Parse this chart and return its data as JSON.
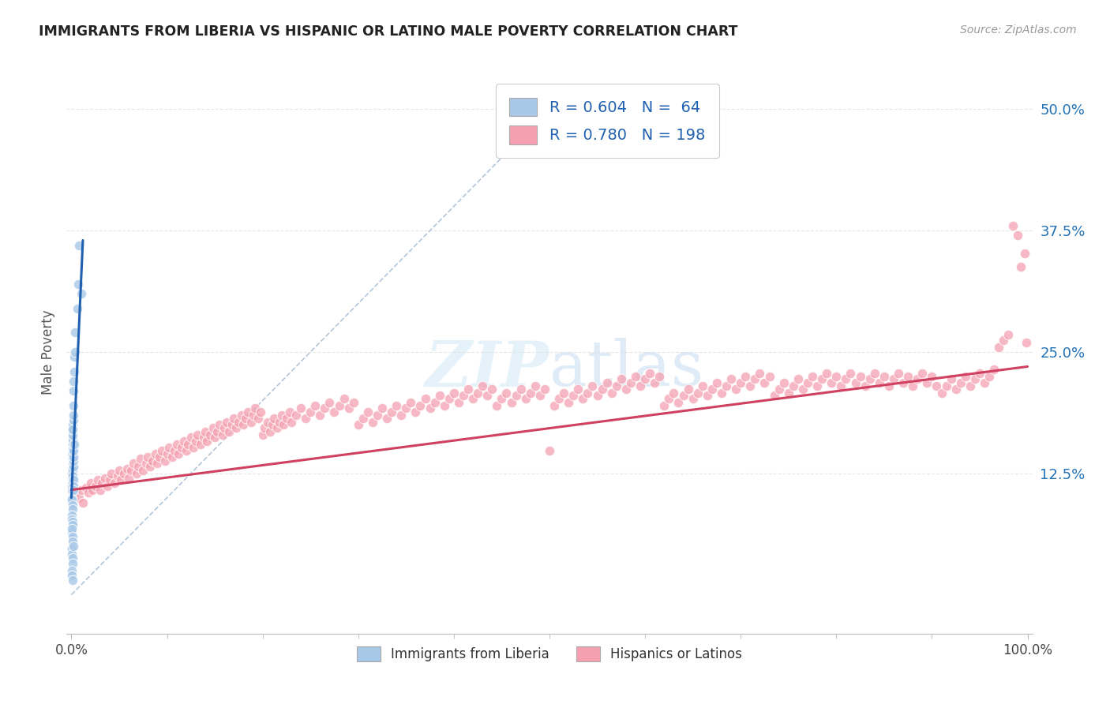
{
  "title": "IMMIGRANTS FROM LIBERIA VS HISPANIC OR LATINO MALE POVERTY CORRELATION CHART",
  "source": "Source: ZipAtlas.com",
  "ylabel": "Male Poverty",
  "ytick_labels": [
    "12.5%",
    "25.0%",
    "37.5%",
    "50.0%"
  ],
  "ytick_values": [
    0.125,
    0.25,
    0.375,
    0.5
  ],
  "xlim": [
    -0.005,
    1.005
  ],
  "ylim": [
    -0.04,
    0.54
  ],
  "blue_color": "#a8c8e8",
  "pink_color": "#f4a0b0",
  "blue_line_color": "#2060b0",
  "pink_line_color": "#d04060",
  "dash_color": "#a0b8d0",
  "watermark_color": "#cce0f0",
  "background_color": "#ffffff",
  "grid_color": "#e0e0e0",
  "blue_scatter": [
    [
      0.0005,
      0.1
    ],
    [
      0.0005,
      0.13
    ],
    [
      0.0008,
      0.145
    ],
    [
      0.001,
      0.155
    ],
    [
      0.001,
      0.16
    ],
    [
      0.001,
      0.165
    ],
    [
      0.001,
      0.17
    ],
    [
      0.0012,
      0.145
    ],
    [
      0.0012,
      0.15
    ],
    [
      0.0015,
      0.175
    ],
    [
      0.0015,
      0.17
    ],
    [
      0.0018,
      0.18
    ],
    [
      0.002,
      0.195
    ],
    [
      0.002,
      0.185
    ],
    [
      0.0022,
      0.21
    ],
    [
      0.0025,
      0.22
    ],
    [
      0.003,
      0.245
    ],
    [
      0.003,
      0.23
    ],
    [
      0.0035,
      0.25
    ],
    [
      0.004,
      0.27
    ],
    [
      0.0005,
      0.115
    ],
    [
      0.0005,
      0.125
    ],
    [
      0.0008,
      0.12
    ],
    [
      0.001,
      0.135
    ],
    [
      0.001,
      0.14
    ],
    [
      0.0012,
      0.13
    ],
    [
      0.0015,
      0.128
    ],
    [
      0.0018,
      0.132
    ],
    [
      0.002,
      0.138
    ],
    [
      0.0022,
      0.142
    ],
    [
      0.0025,
      0.148
    ],
    [
      0.003,
      0.155
    ],
    [
      0.0005,
      0.108
    ],
    [
      0.0008,
      0.112
    ],
    [
      0.001,
      0.118
    ],
    [
      0.0012,
      0.122
    ],
    [
      0.0015,
      0.115
    ],
    [
      0.0018,
      0.118
    ],
    [
      0.002,
      0.112
    ],
    [
      0.0022,
      0.108
    ],
    [
      0.0005,
      0.095
    ],
    [
      0.0008,
      0.098
    ],
    [
      0.001,
      0.092
    ],
    [
      0.001,
      0.088
    ],
    [
      0.0005,
      0.082
    ],
    [
      0.0008,
      0.078
    ],
    [
      0.001,
      0.075
    ],
    [
      0.0012,
      0.072
    ],
    [
      0.0005,
      0.065
    ],
    [
      0.0008,
      0.068
    ],
    [
      0.001,
      0.06
    ],
    [
      0.0012,
      0.055
    ],
    [
      0.0005,
      0.048
    ],
    [
      0.0008,
      0.042
    ],
    [
      0.001,
      0.038
    ],
    [
      0.001,
      0.032
    ],
    [
      0.0005,
      0.025
    ],
    [
      0.0008,
      0.02
    ],
    [
      0.001,
      0.015
    ],
    [
      0.006,
      0.295
    ],
    [
      0.007,
      0.32
    ],
    [
      0.008,
      0.36
    ],
    [
      0.01,
      0.31
    ],
    [
      0.002,
      0.05
    ]
  ],
  "pink_scatter": [
    [
      0.005,
      0.105
    ],
    [
      0.008,
      0.1
    ],
    [
      0.01,
      0.108
    ],
    [
      0.012,
      0.095
    ],
    [
      0.015,
      0.11
    ],
    [
      0.018,
      0.105
    ],
    [
      0.02,
      0.115
    ],
    [
      0.022,
      0.108
    ],
    [
      0.025,
      0.112
    ],
    [
      0.028,
      0.118
    ],
    [
      0.03,
      0.108
    ],
    [
      0.032,
      0.115
    ],
    [
      0.035,
      0.12
    ],
    [
      0.038,
      0.112
    ],
    [
      0.04,
      0.118
    ],
    [
      0.042,
      0.125
    ],
    [
      0.045,
      0.115
    ],
    [
      0.048,
      0.122
    ],
    [
      0.05,
      0.128
    ],
    [
      0.052,
      0.118
    ],
    [
      0.055,
      0.125
    ],
    [
      0.058,
      0.13
    ],
    [
      0.06,
      0.12
    ],
    [
      0.062,
      0.128
    ],
    [
      0.065,
      0.135
    ],
    [
      0.068,
      0.125
    ],
    [
      0.07,
      0.132
    ],
    [
      0.072,
      0.14
    ],
    [
      0.075,
      0.128
    ],
    [
      0.078,
      0.135
    ],
    [
      0.08,
      0.142
    ],
    [
      0.082,
      0.132
    ],
    [
      0.085,
      0.138
    ],
    [
      0.088,
      0.145
    ],
    [
      0.09,
      0.135
    ],
    [
      0.092,
      0.142
    ],
    [
      0.095,
      0.148
    ],
    [
      0.098,
      0.138
    ],
    [
      0.1,
      0.145
    ],
    [
      0.102,
      0.152
    ],
    [
      0.105,
      0.142
    ],
    [
      0.108,
      0.148
    ],
    [
      0.11,
      0.155
    ],
    [
      0.112,
      0.145
    ],
    [
      0.115,
      0.152
    ],
    [
      0.118,
      0.158
    ],
    [
      0.12,
      0.148
    ],
    [
      0.122,
      0.155
    ],
    [
      0.125,
      0.162
    ],
    [
      0.128,
      0.152
    ],
    [
      0.13,
      0.158
    ],
    [
      0.132,
      0.165
    ],
    [
      0.135,
      0.155
    ],
    [
      0.138,
      0.162
    ],
    [
      0.14,
      0.168
    ],
    [
      0.142,
      0.158
    ],
    [
      0.145,
      0.165
    ],
    [
      0.148,
      0.172
    ],
    [
      0.15,
      0.162
    ],
    [
      0.152,
      0.168
    ],
    [
      0.155,
      0.175
    ],
    [
      0.158,
      0.165
    ],
    [
      0.16,
      0.172
    ],
    [
      0.162,
      0.178
    ],
    [
      0.165,
      0.168
    ],
    [
      0.168,
      0.175
    ],
    [
      0.17,
      0.182
    ],
    [
      0.172,
      0.172
    ],
    [
      0.175,
      0.178
    ],
    [
      0.178,
      0.185
    ],
    [
      0.18,
      0.175
    ],
    [
      0.182,
      0.182
    ],
    [
      0.185,
      0.188
    ],
    [
      0.188,
      0.178
    ],
    [
      0.19,
      0.185
    ],
    [
      0.192,
      0.192
    ],
    [
      0.195,
      0.182
    ],
    [
      0.198,
      0.188
    ],
    [
      0.2,
      0.165
    ],
    [
      0.202,
      0.172
    ],
    [
      0.205,
      0.178
    ],
    [
      0.208,
      0.168
    ],
    [
      0.21,
      0.175
    ],
    [
      0.212,
      0.182
    ],
    [
      0.215,
      0.172
    ],
    [
      0.218,
      0.178
    ],
    [
      0.22,
      0.185
    ],
    [
      0.222,
      0.175
    ],
    [
      0.225,
      0.182
    ],
    [
      0.228,
      0.188
    ],
    [
      0.23,
      0.178
    ],
    [
      0.235,
      0.185
    ],
    [
      0.24,
      0.192
    ],
    [
      0.245,
      0.182
    ],
    [
      0.25,
      0.188
    ],
    [
      0.255,
      0.195
    ],
    [
      0.26,
      0.185
    ],
    [
      0.265,
      0.192
    ],
    [
      0.27,
      0.198
    ],
    [
      0.275,
      0.188
    ],
    [
      0.28,
      0.195
    ],
    [
      0.285,
      0.202
    ],
    [
      0.29,
      0.192
    ],
    [
      0.295,
      0.198
    ],
    [
      0.3,
      0.175
    ],
    [
      0.305,
      0.182
    ],
    [
      0.31,
      0.188
    ],
    [
      0.315,
      0.178
    ],
    [
      0.32,
      0.185
    ],
    [
      0.325,
      0.192
    ],
    [
      0.33,
      0.182
    ],
    [
      0.335,
      0.188
    ],
    [
      0.34,
      0.195
    ],
    [
      0.345,
      0.185
    ],
    [
      0.35,
      0.192
    ],
    [
      0.355,
      0.198
    ],
    [
      0.36,
      0.188
    ],
    [
      0.365,
      0.195
    ],
    [
      0.37,
      0.202
    ],
    [
      0.375,
      0.192
    ],
    [
      0.38,
      0.198
    ],
    [
      0.385,
      0.205
    ],
    [
      0.39,
      0.195
    ],
    [
      0.395,
      0.202
    ],
    [
      0.4,
      0.208
    ],
    [
      0.405,
      0.198
    ],
    [
      0.41,
      0.205
    ],
    [
      0.415,
      0.212
    ],
    [
      0.42,
      0.202
    ],
    [
      0.425,
      0.208
    ],
    [
      0.43,
      0.215
    ],
    [
      0.435,
      0.205
    ],
    [
      0.44,
      0.212
    ],
    [
      0.445,
      0.195
    ],
    [
      0.45,
      0.202
    ],
    [
      0.455,
      0.208
    ],
    [
      0.46,
      0.198
    ],
    [
      0.465,
      0.205
    ],
    [
      0.47,
      0.212
    ],
    [
      0.475,
      0.202
    ],
    [
      0.48,
      0.208
    ],
    [
      0.485,
      0.215
    ],
    [
      0.49,
      0.205
    ],
    [
      0.495,
      0.212
    ],
    [
      0.5,
      0.148
    ],
    [
      0.505,
      0.195
    ],
    [
      0.51,
      0.202
    ],
    [
      0.515,
      0.208
    ],
    [
      0.52,
      0.198
    ],
    [
      0.525,
      0.205
    ],
    [
      0.53,
      0.212
    ],
    [
      0.535,
      0.202
    ],
    [
      0.54,
      0.208
    ],
    [
      0.545,
      0.215
    ],
    [
      0.55,
      0.205
    ],
    [
      0.555,
      0.212
    ],
    [
      0.56,
      0.218
    ],
    [
      0.565,
      0.208
    ],
    [
      0.57,
      0.215
    ],
    [
      0.575,
      0.222
    ],
    [
      0.58,
      0.212
    ],
    [
      0.585,
      0.218
    ],
    [
      0.59,
      0.225
    ],
    [
      0.595,
      0.215
    ],
    [
      0.6,
      0.222
    ],
    [
      0.605,
      0.228
    ],
    [
      0.61,
      0.218
    ],
    [
      0.615,
      0.225
    ],
    [
      0.62,
      0.195
    ],
    [
      0.625,
      0.202
    ],
    [
      0.63,
      0.208
    ],
    [
      0.635,
      0.198
    ],
    [
      0.64,
      0.205
    ],
    [
      0.645,
      0.212
    ],
    [
      0.65,
      0.202
    ],
    [
      0.655,
      0.208
    ],
    [
      0.66,
      0.215
    ],
    [
      0.665,
      0.205
    ],
    [
      0.67,
      0.212
    ],
    [
      0.675,
      0.218
    ],
    [
      0.68,
      0.208
    ],
    [
      0.685,
      0.215
    ],
    [
      0.69,
      0.222
    ],
    [
      0.695,
      0.212
    ],
    [
      0.7,
      0.218
    ],
    [
      0.705,
      0.225
    ],
    [
      0.71,
      0.215
    ],
    [
      0.715,
      0.222
    ],
    [
      0.72,
      0.228
    ],
    [
      0.725,
      0.218
    ],
    [
      0.73,
      0.225
    ],
    [
      0.735,
      0.205
    ],
    [
      0.74,
      0.212
    ],
    [
      0.745,
      0.218
    ],
    [
      0.75,
      0.208
    ],
    [
      0.755,
      0.215
    ],
    [
      0.76,
      0.222
    ],
    [
      0.765,
      0.212
    ],
    [
      0.77,
      0.218
    ],
    [
      0.775,
      0.225
    ],
    [
      0.78,
      0.215
    ],
    [
      0.785,
      0.222
    ],
    [
      0.79,
      0.228
    ],
    [
      0.795,
      0.218
    ],
    [
      0.8,
      0.225
    ],
    [
      0.805,
      0.215
    ],
    [
      0.81,
      0.222
    ],
    [
      0.815,
      0.228
    ],
    [
      0.82,
      0.218
    ],
    [
      0.825,
      0.225
    ],
    [
      0.83,
      0.215
    ],
    [
      0.835,
      0.222
    ],
    [
      0.84,
      0.228
    ],
    [
      0.845,
      0.218
    ],
    [
      0.85,
      0.225
    ],
    [
      0.855,
      0.215
    ],
    [
      0.86,
      0.222
    ],
    [
      0.865,
      0.228
    ],
    [
      0.87,
      0.218
    ],
    [
      0.875,
      0.225
    ],
    [
      0.88,
      0.215
    ],
    [
      0.885,
      0.222
    ],
    [
      0.89,
      0.228
    ],
    [
      0.895,
      0.218
    ],
    [
      0.9,
      0.225
    ],
    [
      0.905,
      0.215
    ],
    [
      0.91,
      0.208
    ],
    [
      0.915,
      0.215
    ],
    [
      0.92,
      0.222
    ],
    [
      0.925,
      0.212
    ],
    [
      0.93,
      0.218
    ],
    [
      0.935,
      0.225
    ],
    [
      0.94,
      0.215
    ],
    [
      0.945,
      0.222
    ],
    [
      0.95,
      0.228
    ],
    [
      0.955,
      0.218
    ],
    [
      0.96,
      0.225
    ],
    [
      0.965,
      0.232
    ],
    [
      0.97,
      0.255
    ],
    [
      0.975,
      0.262
    ],
    [
      0.98,
      0.268
    ],
    [
      0.985,
      0.38
    ],
    [
      0.99,
      0.37
    ],
    [
      0.993,
      0.338
    ],
    [
      0.997,
      0.352
    ],
    [
      0.999,
      0.26
    ]
  ],
  "blue_regr": [
    0.0,
    0.1,
    0.012,
    0.365
  ],
  "pink_regr": [
    0.0,
    0.108,
    1.0,
    0.235
  ],
  "dash_line": [
    0.0,
    0.0,
    0.45,
    0.45
  ]
}
